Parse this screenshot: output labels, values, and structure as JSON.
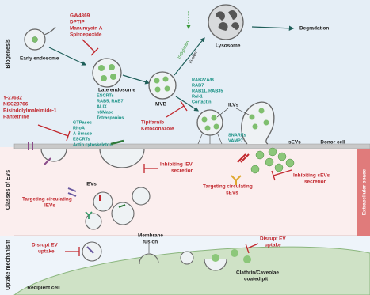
{
  "sections": {
    "biogenesis": "Biogenesis",
    "classes": "Classes of EVs",
    "uptake": "Uptake mechanism"
  },
  "regions": {
    "donor_cell": "Donor cell",
    "extracellular_space": "Extracellular space",
    "recipient_cell": "Recipient cell"
  },
  "biogenesis": {
    "inhibitors_top": [
      "GW4869",
      "DPTIP",
      "Manumycin A",
      "Spiroepoxide"
    ],
    "early_endosome": "Early endosome",
    "late_endosome_factors": [
      "ESCRTs",
      "RAB5, RAB7",
      "ALIX",
      "nSMase",
      "Tetraspanins"
    ],
    "late_endosome": "Late endosome",
    "mvb": "MVB",
    "mvb_factors": [
      "RAB27A/B",
      "RAB7",
      "RAB11, RAB35",
      "Ral-1",
      "Cortactin"
    ],
    "isgylation": "ISGylation",
    "fusion": "Fusion",
    "lysosome": "Lysosome",
    "degradation": "Degradation",
    "inhibitors_left": [
      "Y-27632",
      "NSC23766",
      "Bisindolylmaleimide-1",
      "Pantethine"
    ],
    "lev_factors": [
      "GTPases",
      "RhoA",
      "A-Smase",
      "ESCRTs",
      "Actin cytoskeleton"
    ],
    "inhibitors_mvb": [
      "Tipifarnib",
      "Ketoconazole"
    ],
    "ilvs": "ILVs",
    "snare_factors": [
      "SNAREs",
      "VAMP7"
    ]
  },
  "classes": {
    "sevs": "sEVs",
    "levs": "lEVs",
    "inhibit_lev": [
      "Inhibiting lEV",
      "secretion"
    ],
    "target_lev": [
      "Targeting circulating",
      "lEVs"
    ],
    "target_sev": [
      "Targeting circulating",
      "sEVs"
    ],
    "inhibit_sev": [
      "Inhibiting sEVs",
      "secretion"
    ]
  },
  "uptake": {
    "membrane_fusion": [
      "Membrane",
      "fusion"
    ],
    "disrupt_left": [
      "Disrupt EV",
      "uptake"
    ],
    "disrupt_right": [
      "Disrupt EV",
      "uptake"
    ],
    "coated_pit": [
      "Clathrin/Caveolae",
      "coated pit"
    ]
  }
}
